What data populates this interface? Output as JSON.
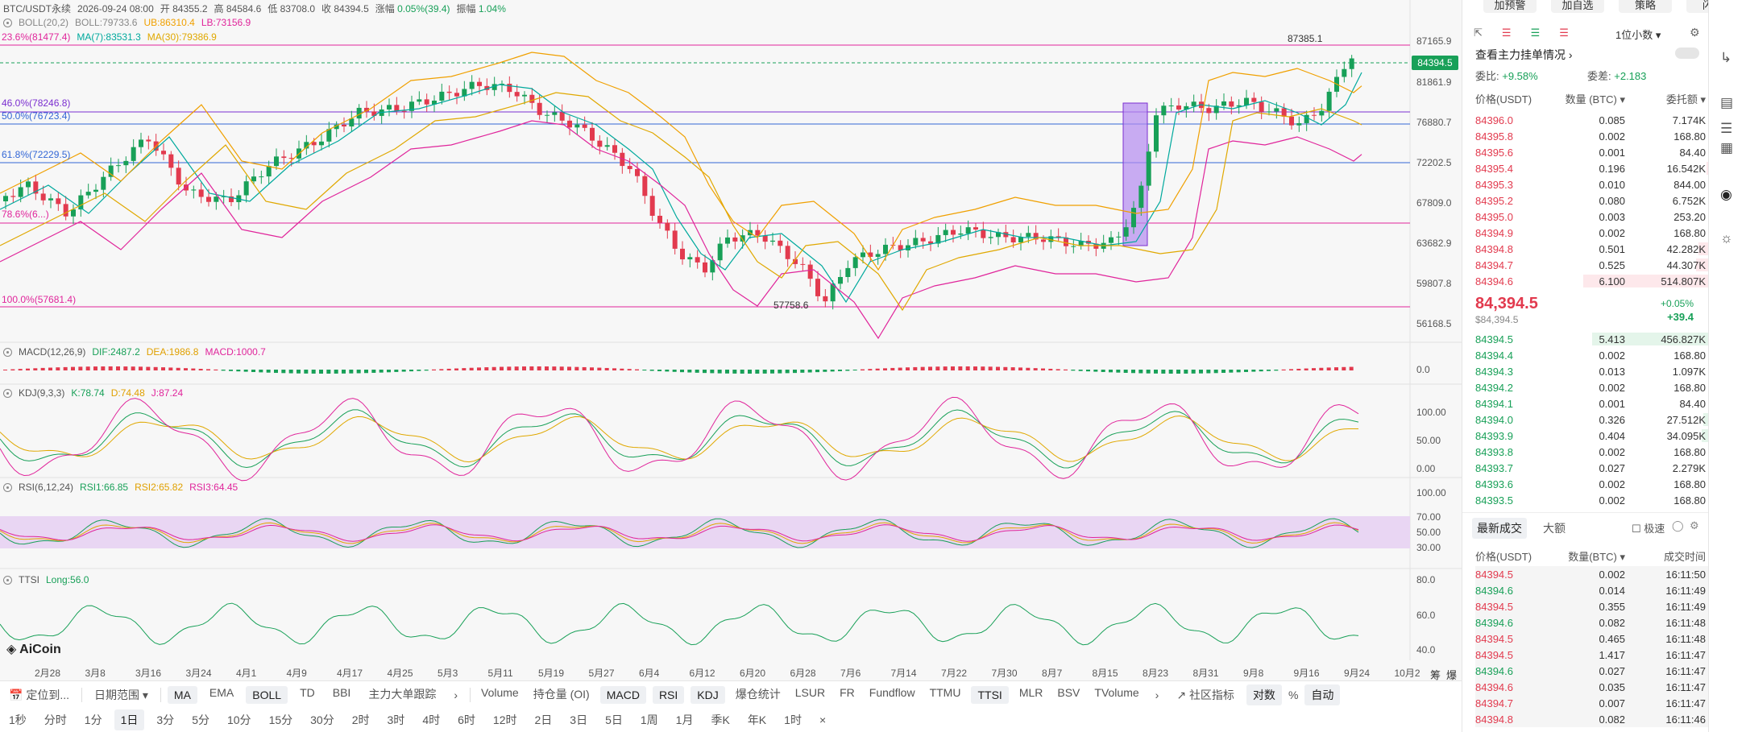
{
  "header": {
    "symbol": "BTC/USDT永续",
    "datetime": "2026-09-24 08:00",
    "open_label": "开",
    "open": "84355.2",
    "high_label": "高",
    "high": "84584.6",
    "low_label": "低",
    "low": "83708.0",
    "close_label": "收",
    "close": "84394.5",
    "change_label": "涨幅",
    "change": "0.05%(39.4)",
    "amplitude_label": "振幅",
    "amplitude": "1.04%"
  },
  "boll": {
    "name": "BOLL(20,2)",
    "boll": "BOLL:79733.6",
    "ub": "UB:86310.4",
    "lb": "LB:73156.9"
  },
  "ma": {
    "fib": "23.6%(81477.4)",
    "ma7": "MA(7):83531.3",
    "ma30": "MA(30):79386.9"
  },
  "price_axis": [
    "87165.9",
    "84394.5",
    "81861.9",
    "76880.7",
    "72202.5",
    "67809.0",
    "63682.9",
    "59807.8",
    "56168.5"
  ],
  "fib_levels": [
    "46.0%(78246.8)",
    "50.0%(76723.4)",
    "61.8%(72229.5)",
    "78.6%(6...)",
    "100.0%(57681.4)"
  ],
  "annotations": {
    "high": "87385.1",
    "low": "57758.6"
  },
  "macd": {
    "name": "MACD(12,26,9)",
    "dif": "DIF:2487.2",
    "dea": "DEA:1986.8",
    "macd": "MACD:1000.7",
    "axis": [
      "0.0"
    ]
  },
  "kdj": {
    "name": "KDJ(9,3,3)",
    "k": "K:78.74",
    "d": "D:74.48",
    "j": "J:87.24",
    "axis": [
      "100.00",
      "50.00",
      "0.00"
    ]
  },
  "rsi": {
    "name": "RSI(6,12,24)",
    "rsi1": "RSI1:66.85",
    "rsi2": "RSI2:65.82",
    "rsi3": "RSI3:64.45",
    "axis": [
      "100.00",
      "70.00",
      "50.00",
      "30.00"
    ]
  },
  "ttsi": {
    "name": "TTSI",
    "long": "Long:56.0",
    "axis": [
      "80.0",
      "60.0",
      "40.0"
    ]
  },
  "logo": "AiCoin",
  "dates": [
    "2月28",
    "3月8",
    "3月16",
    "3月24",
    "4月1",
    "4月9",
    "4月17",
    "4月25",
    "5月3",
    "5月11",
    "5月19",
    "5月27",
    "6月4",
    "6月12",
    "6月20",
    "6月28",
    "7月6",
    "7月14",
    "7月22",
    "7月30",
    "8月7",
    "8月15",
    "8月23",
    "8月31",
    "9月8",
    "9月16",
    "9月24",
    "10月2"
  ],
  "date_corner": [
    "筹",
    "爆"
  ],
  "toolbar1": {
    "locate": "定位到...",
    "range": "日期范围",
    "indicators": [
      "MA",
      "EMA",
      "BOLL",
      "TD",
      "BBI",
      "主力大单跟踪"
    ],
    "sub_indicators": [
      "Volume",
      "持仓量 (OI)",
      "MACD",
      "RSI",
      "KDJ",
      "爆仓统计",
      "LSUR",
      "FR",
      "Fundflow",
      "TTMU",
      "TTSI",
      "MLR",
      "BSV",
      "TVolume"
    ],
    "community": "社区指标",
    "log": "对数",
    "percent": "%",
    "auto": "自动"
  },
  "toolbar2": {
    "intervals": [
      "1秒",
      "分时",
      "1分",
      "1日",
      "3分",
      "5分",
      "10分",
      "15分",
      "30分",
      "2时",
      "3时",
      "4时",
      "6时",
      "12时",
      "2日",
      "3日",
      "5日",
      "1周",
      "1月",
      "季K",
      "年K",
      "1时"
    ],
    "close": "×"
  },
  "right_panel": {
    "top_buttons": [
      "加预警",
      "加自选",
      "策略",
      "闪兑"
    ],
    "precision": "1位小数",
    "orderbook_title": "查看主力挂单情况",
    "ratio_label": "委比:",
    "ratio": "+9.58%",
    "diff_label": "委差:",
    "diff": "+2.183",
    "head_price": "价格(USDT)",
    "head_qty": "数量 (BTC)",
    "head_total": "委托额",
    "asks": [
      {
        "p": "84396.0",
        "q": "0.085",
        "t": "7.174K",
        "w": 0.02
      },
      {
        "p": "84395.8",
        "q": "0.002",
        "t": "168.80",
        "w": 0.01
      },
      {
        "p": "84395.6",
        "q": "0.001",
        "t": "84.40",
        "w": 0.01
      },
      {
        "p": "84395.4",
        "q": "0.196",
        "t": "16.542K",
        "w": 0.04
      },
      {
        "p": "84395.3",
        "q": "0.010",
        "t": "844.00",
        "w": 0.01
      },
      {
        "p": "84395.2",
        "q": "0.080",
        "t": "6.752K",
        "w": 0.02
      },
      {
        "p": "84395.0",
        "q": "0.003",
        "t": "253.20",
        "w": 0.01
      },
      {
        "p": "84394.9",
        "q": "0.002",
        "t": "168.80",
        "w": 0.01
      },
      {
        "p": "84394.8",
        "q": "0.501",
        "t": "42.282K",
        "w": 0.09
      },
      {
        "p": "84394.7",
        "q": "0.525",
        "t": "44.307K",
        "w": 0.1
      },
      {
        "p": "84394.6",
        "q": "6.100",
        "t": "514.807K",
        "w": 0.75
      }
    ],
    "last_price": "84,394.5",
    "last_sub": "$84,394.5",
    "last_change": "+0.05%",
    "last_diff": "+39.4",
    "bids": [
      {
        "p": "84394.5",
        "q": "5.413",
        "t": "456.827K",
        "w": 0.7
      },
      {
        "p": "84394.4",
        "q": "0.002",
        "t": "168.80",
        "w": 0.01
      },
      {
        "p": "84394.3",
        "q": "0.013",
        "t": "1.097K",
        "w": 0.01
      },
      {
        "p": "84394.2",
        "q": "0.002",
        "t": "168.80",
        "w": 0.01
      },
      {
        "p": "84394.1",
        "q": "0.001",
        "t": "84.40",
        "w": 0.01
      },
      {
        "p": "84394.0",
        "q": "0.326",
        "t": "27.512K",
        "w": 0.06
      },
      {
        "p": "84393.9",
        "q": "0.404",
        "t": "34.095K",
        "w": 0.07
      },
      {
        "p": "84393.8",
        "q": "0.002",
        "t": "168.80",
        "w": 0.01
      },
      {
        "p": "84393.7",
        "q": "0.027",
        "t": "2.279K",
        "w": 0.01
      },
      {
        "p": "84393.6",
        "q": "0.002",
        "t": "168.80",
        "w": 0.01
      },
      {
        "p": "84393.5",
        "q": "0.002",
        "t": "168.80",
        "w": 0.01
      }
    ],
    "trades_tab": "最新成交",
    "big_tab": "大额",
    "fast_label": "极速",
    "trades_head_price": "价格(USDT)",
    "trades_head_qty": "数量(BTC)",
    "trades_head_time": "成交时间",
    "trades": [
      {
        "p": "84394.5",
        "q": "0.002",
        "t": "16:11:50",
        "c": "red"
      },
      {
        "p": "84394.6",
        "q": "0.014",
        "t": "16:11:49",
        "c": "green"
      },
      {
        "p": "84394.5",
        "q": "0.355",
        "t": "16:11:49",
        "c": "red"
      },
      {
        "p": "84394.6",
        "q": "0.082",
        "t": "16:11:48",
        "c": "green"
      },
      {
        "p": "84394.5",
        "q": "0.465",
        "t": "16:11:48",
        "c": "red"
      },
      {
        "p": "84394.5",
        "q": "1.417",
        "t": "16:11:47",
        "c": "red"
      },
      {
        "p": "84394.6",
        "q": "0.027",
        "t": "16:11:47",
        "c": "green"
      },
      {
        "p": "84394.6",
        "q": "0.035",
        "t": "16:11:47",
        "c": "red"
      },
      {
        "p": "84394.7",
        "q": "0.007",
        "t": "16:11:47",
        "c": "red"
      },
      {
        "p": "84394.8",
        "q": "0.082",
        "t": "16:11:46",
        "c": "red"
      }
    ]
  },
  "colors": {
    "up": "#18a058",
    "down": "#e23a4e",
    "accent": "#e0259b",
    "panel": "#f7f7f7"
  }
}
